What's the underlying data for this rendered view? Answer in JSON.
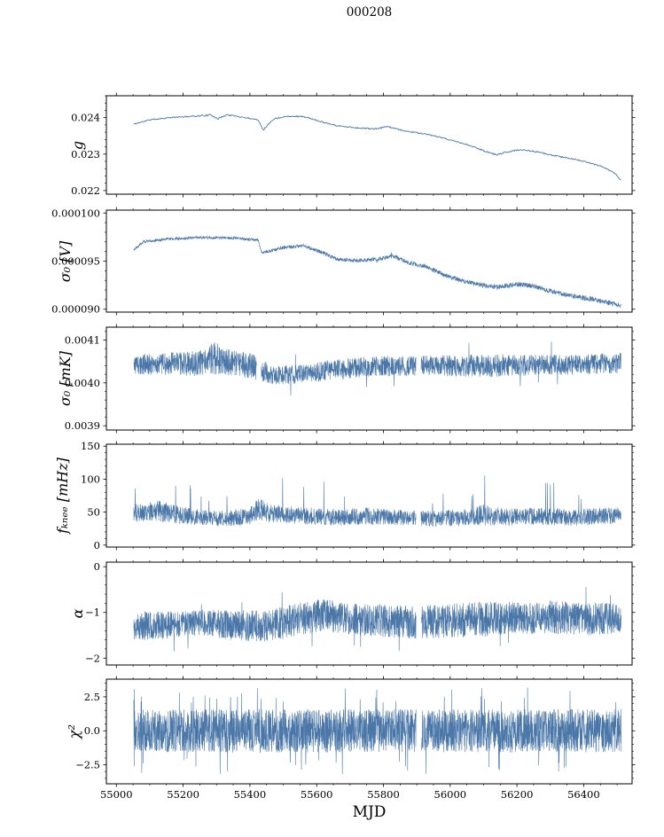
{
  "chart_data": {
    "type": "line",
    "title": "000208",
    "line_color": "#4a77a8",
    "x": {
      "label": "MJD",
      "lim": [
        54970,
        56545
      ],
      "data_range": [
        55052,
        56512
      ],
      "minor_step": 50,
      "ticks": {
        "values": [
          55000,
          55200,
          55400,
          55600,
          55800,
          56000,
          56200,
          56400
        ],
        "labels": [
          "55000",
          "55200",
          "55400",
          "55600",
          "55800",
          "56000",
          "56200",
          "56400"
        ]
      }
    },
    "panels": [
      {
        "name": "gain",
        "ylabel": "g",
        "ylim": [
          0.0219,
          0.0246
        ],
        "yticks": {
          "values": [
            0.024,
            0.023,
            0.022
          ],
          "labels": [
            "0.024",
            "0.023",
            "0.022"
          ]
        },
        "y_minor_step": 0.0002,
        "series_model": {
          "seed": 11,
          "points": 700,
          "spike_prob": 0,
          "spike_mult": [
            1.5,
            2.0
          ],
          "spike_sign": 0,
          "gaps": [],
          "keypoints": [
            [
              55052,
              0.02382,
              1.5e-05
            ],
            [
              55100,
              0.02394,
              1.5e-05
            ],
            [
              55160,
              0.024,
              1.5e-05
            ],
            [
              55230,
              0.02404,
              1.7e-05
            ],
            [
              55285,
              0.02407,
              2.6e-05
            ],
            [
              55305,
              0.02397,
              2.6e-05
            ],
            [
              55330,
              0.02408,
              2e-05
            ],
            [
              55380,
              0.02401,
              1.5e-05
            ],
            [
              55425,
              0.02394,
              1.5e-05
            ],
            [
              55440,
              0.02366,
              2e-05
            ],
            [
              55470,
              0.02396,
              2e-05
            ],
            [
              55510,
              0.02404,
              1.5e-05
            ],
            [
              55560,
              0.02403,
              1.5e-05
            ],
            [
              55610,
              0.0239,
              1.5e-05
            ],
            [
              55660,
              0.02378,
              1.7e-05
            ],
            [
              55720,
              0.02372,
              1.7e-05
            ],
            [
              55780,
              0.02369,
              1.7e-05
            ],
            [
              55810,
              0.02376,
              1.7e-05
            ],
            [
              55860,
              0.02364,
              1.5e-05
            ],
            [
              55920,
              0.02356,
              1.5e-05
            ],
            [
              55970,
              0.02346,
              1.5e-05
            ],
            [
              56020,
              0.02334,
              1.5e-05
            ],
            [
              56070,
              0.0232,
              1.5e-05
            ],
            [
              56110,
              0.02306,
              2e-05
            ],
            [
              56140,
              0.02298,
              2e-05
            ],
            [
              56170,
              0.02306,
              2e-05
            ],
            [
              56210,
              0.02312,
              1.5e-05
            ],
            [
              56260,
              0.02306,
              1.5e-05
            ],
            [
              56310,
              0.02296,
              1.5e-05
            ],
            [
              56360,
              0.02288,
              1.5e-05
            ],
            [
              56410,
              0.02278,
              1.5e-05
            ],
            [
              56460,
              0.02264,
              1.5e-05
            ],
            [
              56495,
              0.02246,
              1.6e-05
            ],
            [
              56512,
              0.02228,
              1.6e-05
            ]
          ]
        }
      },
      {
        "name": "sigma0_V",
        "ylabel": "σ₀ [V]",
        "ylim": [
          8.97e-05,
          0.0001003
        ],
        "yticks": {
          "values": [
            0.0001,
            9.5e-05,
            9e-05
          ],
          "labels": [
            "0.000100",
            "0.000095",
            "0.000090"
          ]
        },
        "y_minor_step": 1e-06,
        "series_model": {
          "seed": 22,
          "points": 2200,
          "spike_prob": 0.002,
          "spike_mult": [
            1.5,
            2.2
          ],
          "spike_sign": 0,
          "gaps": [],
          "keypoints": [
            [
              55052,
              9.62e-05,
              1.5e-07
            ],
            [
              55080,
              9.7e-05,
              1.5e-07
            ],
            [
              55150,
              9.73e-05,
              1.5e-07
            ],
            [
              55250,
              9.745e-05,
              1.5e-07
            ],
            [
              55350,
              9.74e-05,
              1.5e-07
            ],
            [
              55425,
              9.72e-05,
              1.5e-07
            ],
            [
              55435,
              9.585e-05,
              1.5e-07
            ],
            [
              55500,
              9.64e-05,
              1.8e-07
            ],
            [
              55560,
              9.66e-05,
              1.8e-07
            ],
            [
              55610,
              9.6e-05,
              2e-07
            ],
            [
              55660,
              9.52e-05,
              2e-07
            ],
            [
              55720,
              9.505e-05,
              2e-07
            ],
            [
              55780,
              9.52e-05,
              2.2e-07
            ],
            [
              55830,
              9.55e-05,
              2.2e-07
            ],
            [
              55880,
              9.48e-05,
              2.2e-07
            ],
            [
              55930,
              9.44e-05,
              2.2e-07
            ],
            [
              55980,
              9.36e-05,
              2.4e-07
            ],
            [
              56030,
              9.3e-05,
              2.4e-07
            ],
            [
              56080,
              9.26e-05,
              2.4e-07
            ],
            [
              56140,
              9.23e-05,
              2.4e-07
            ],
            [
              56200,
              9.26e-05,
              2.6e-07
            ],
            [
              56250,
              9.24e-05,
              2.6e-07
            ],
            [
              56300,
              9.19e-05,
              2.6e-07
            ],
            [
              56360,
              9.14e-05,
              2.6e-07
            ],
            [
              56420,
              9.11e-05,
              2.6e-07
            ],
            [
              56470,
              9.07e-05,
              2.6e-07
            ],
            [
              56512,
              9.04e-05,
              2.6e-07
            ]
          ]
        }
      },
      {
        "name": "sigma0_mK",
        "ylabel": "σ₀ [mK]",
        "ylim": [
          0.00389,
          0.00413
        ],
        "yticks": {
          "values": [
            0.0041,
            0.004,
            0.0039
          ],
          "labels": [
            "0.0041",
            "0.0040",
            "0.0039"
          ]
        },
        "y_minor_step": 2e-05,
        "series_model": {
          "seed": 33,
          "points": 2400,
          "spike_prob": 0.004,
          "spike_mult": [
            1.5,
            2.4
          ],
          "spike_sign": 0,
          "gaps": [
            [
              55420,
              55434
            ],
            [
              55898,
              55912
            ]
          ],
          "keypoints": [
            [
              55052,
              0.004042,
              2.4e-05
            ],
            [
              55150,
              0.004044,
              2.6e-05
            ],
            [
              55250,
              0.004045,
              3e-05
            ],
            [
              55300,
              0.00406,
              4e-05
            ],
            [
              55320,
              0.00405,
              3e-05
            ],
            [
              55400,
              0.00404,
              3e-05
            ],
            [
              55470,
              0.004018,
              2.2e-05
            ],
            [
              55550,
              0.00402,
              2.2e-05
            ],
            [
              55650,
              0.00403,
              2.4e-05
            ],
            [
              55750,
              0.004038,
              2.4e-05
            ],
            [
              55850,
              0.00404,
              2.4e-05
            ],
            [
              55950,
              0.00404,
              2.4e-05
            ],
            [
              56050,
              0.00404,
              2.6e-05
            ],
            [
              56150,
              0.00404,
              2.6e-05
            ],
            [
              56250,
              0.004042,
              2.4e-05
            ],
            [
              56350,
              0.004042,
              2.4e-05
            ],
            [
              56450,
              0.004045,
              2.4e-05
            ],
            [
              56512,
              0.004047,
              2.4e-05
            ]
          ]
        }
      },
      {
        "name": "f_knee_mHz",
        "ylabel": "fₖₙₑₑ [mHz]",
        "ylim": [
          -3,
          153
        ],
        "yticks": {
          "values": [
            150,
            100,
            50,
            0
          ],
          "labels": [
            "150",
            "100",
            "50",
            "0"
          ]
        },
        "y_minor_step": 10,
        "series_model": {
          "seed": 44,
          "points": 2400,
          "spike_prob": 0.012,
          "spike_mult": [
            1.8,
            4.3
          ],
          "spike_sign": 1,
          "gaps": [
            [
              55898,
              55912
            ]
          ],
          "keypoints": [
            [
              55052,
              48,
              13
            ],
            [
              55120,
              52,
              16
            ],
            [
              55180,
              46,
              14
            ],
            [
              55250,
              42,
              12
            ],
            [
              55320,
              40,
              12
            ],
            [
              55400,
              44,
              13
            ],
            [
              55430,
              55,
              18
            ],
            [
              55460,
              48,
              14
            ],
            [
              55550,
              45,
              13
            ],
            [
              55650,
              42,
              13
            ],
            [
              55750,
              44,
              13
            ],
            [
              55850,
              42,
              12
            ],
            [
              55950,
              40,
              12
            ],
            [
              56050,
              42,
              13
            ],
            [
              56100,
              46,
              16
            ],
            [
              56160,
              42,
              13
            ],
            [
              56250,
              44,
              13
            ],
            [
              56350,
              42,
              13
            ],
            [
              56450,
              44,
              13
            ],
            [
              56512,
              44,
              13
            ]
          ]
        }
      },
      {
        "name": "alpha",
        "ylabel": "α",
        "ylim": [
          -2.15,
          0.1
        ],
        "yticks": {
          "values": [
            0,
            -1,
            -2
          ],
          "labels": [
            "0",
            "−1",
            "−2"
          ]
        },
        "y_minor_step": 0.2,
        "series_model": {
          "seed": 55,
          "points": 2600,
          "spike_prob": 0.006,
          "spike_mult": [
            1.4,
            2.0
          ],
          "spike_sign": 0,
          "gaps": [
            [
              55898,
              55914
            ]
          ],
          "keypoints": [
            [
              55052,
              -1.3,
              0.33
            ],
            [
              55150,
              -1.28,
              0.3
            ],
            [
              55250,
              -1.22,
              0.28
            ],
            [
              55350,
              -1.28,
              0.33
            ],
            [
              55450,
              -1.3,
              0.35
            ],
            [
              55550,
              -1.15,
              0.38
            ],
            [
              55620,
              -1.05,
              0.35
            ],
            [
              55700,
              -1.15,
              0.35
            ],
            [
              55800,
              -1.18,
              0.36
            ],
            [
              55900,
              -1.22,
              0.36
            ],
            [
              56000,
              -1.18,
              0.38
            ],
            [
              56100,
              -1.15,
              0.38
            ],
            [
              56200,
              -1.12,
              0.36
            ],
            [
              56300,
              -1.1,
              0.36
            ],
            [
              56400,
              -1.15,
              0.36
            ],
            [
              56512,
              -1.12,
              0.34
            ]
          ]
        }
      },
      {
        "name": "chi2",
        "ylabel": "χ²",
        "ylim": [
          -3.9,
          3.8
        ],
        "yticks": {
          "values": [
            2.5,
            0,
            -2.5
          ],
          "labels": [
            "2.5",
            "0.0",
            "−2.5"
          ]
        },
        "y_minor_step": 0.5,
        "series_model": {
          "seed": 66,
          "points": 2800,
          "spike_prob": 0.02,
          "spike_mult": [
            1.3,
            2.0
          ],
          "spike_sign": 0,
          "gaps": [
            [
              55898,
              55914
            ]
          ],
          "keypoints": [
            [
              55052,
              0,
              1.55
            ],
            [
              55300,
              0,
              1.6
            ],
            [
              55600,
              0,
              1.6
            ],
            [
              55900,
              0,
              1.6
            ],
            [
              56200,
              0,
              1.6
            ],
            [
              56512,
              0,
              1.6
            ]
          ]
        }
      }
    ]
  }
}
